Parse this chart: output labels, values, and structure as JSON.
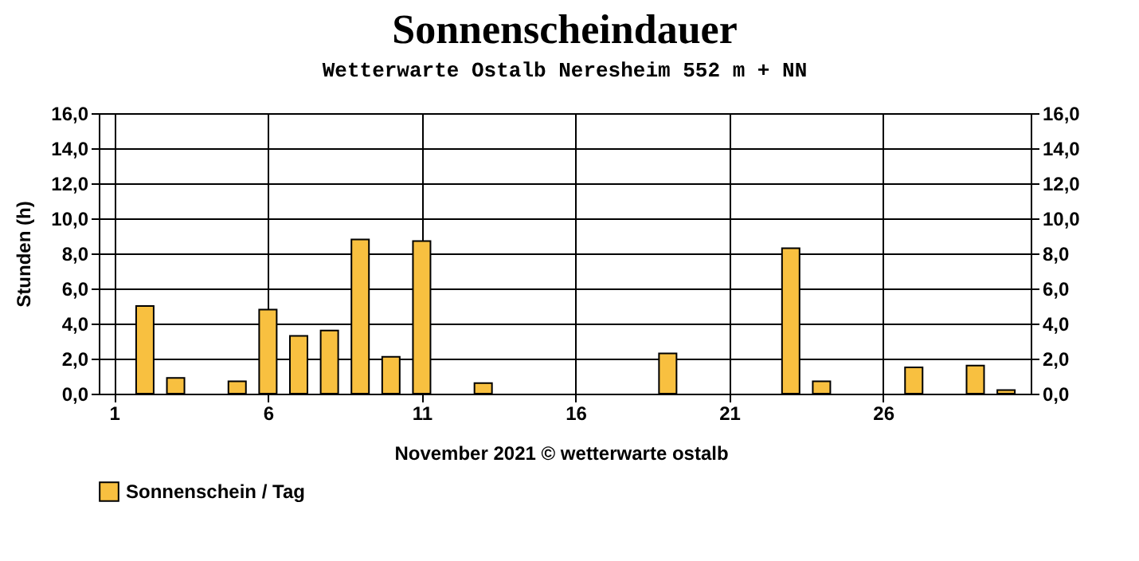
{
  "chart_data": {
    "type": "bar",
    "title": "Sonnenscheindauer",
    "subtitle": "Wetterwarte Ostalb Neresheim 552 m + NN",
    "xlabel": "November 2021   © wetterwarte ostalb",
    "ylabel": "Stunden  (h)",
    "x": [
      1,
      2,
      3,
      4,
      5,
      6,
      7,
      8,
      9,
      10,
      11,
      12,
      13,
      14,
      15,
      16,
      17,
      18,
      19,
      20,
      21,
      22,
      23,
      24,
      25,
      26,
      27,
      28,
      29,
      30
    ],
    "series": [
      {
        "name": "Sonnenschein / Tag",
        "color": "#f8c040",
        "values": [
          0,
          5.0,
          0.9,
          0,
          0.7,
          4.8,
          3.3,
          3.6,
          8.8,
          2.1,
          8.7,
          0,
          0.6,
          0,
          0,
          0,
          0,
          0,
          2.3,
          0,
          0,
          0,
          8.3,
          0.7,
          0,
          0,
          1.5,
          0,
          1.6,
          0.2
        ]
      }
    ],
    "xlim": [
      0.5,
      30.8
    ],
    "xticks": [
      1,
      6,
      11,
      16,
      21,
      26
    ],
    "ylim": [
      0,
      16
    ],
    "yticks": [
      {
        "value": 0,
        "label": "0,0"
      },
      {
        "value": 2,
        "label": "2,0"
      },
      {
        "value": 4,
        "label": "4,0"
      },
      {
        "value": 6,
        "label": "6,0"
      },
      {
        "value": 8,
        "label": "8,0"
      },
      {
        "value": 10,
        "label": "10,0"
      },
      {
        "value": 12,
        "label": "12,0"
      },
      {
        "value": 14,
        "label": "14,0"
      },
      {
        "value": 16,
        "label": "16,0"
      }
    ],
    "y2lim": [
      0,
      16
    ],
    "y2ticks": [
      {
        "value": 0,
        "label": "0,0"
      },
      {
        "value": 2,
        "label": "2,0"
      },
      {
        "value": 4,
        "label": "4,0"
      },
      {
        "value": 6,
        "label": "6,0"
      },
      {
        "value": 8,
        "label": "8,0"
      },
      {
        "value": 10,
        "label": "10,0"
      },
      {
        "value": 12,
        "label": "12,0"
      },
      {
        "value": 14,
        "label": "14,0"
      },
      {
        "value": 16,
        "label": "16,0"
      }
    ],
    "grid": true,
    "legend": "bottom"
  }
}
